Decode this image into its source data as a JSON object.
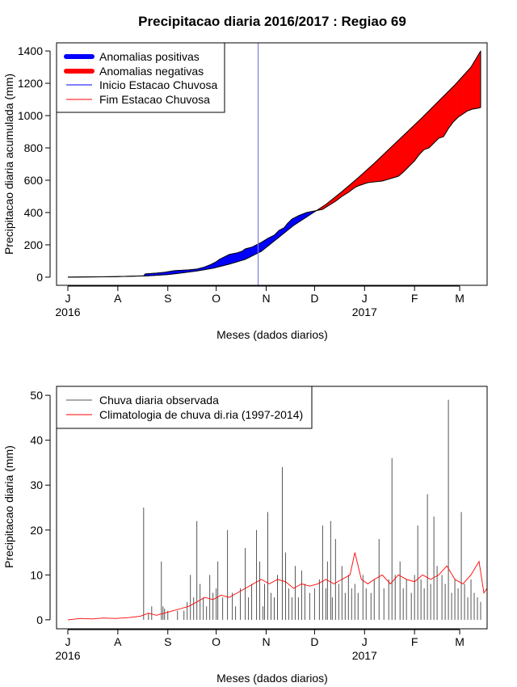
{
  "chart_data": [
    {
      "type": "area",
      "title": "Precipitacao diaria 2016/2017 : Regiao 69",
      "ylabel": "Precipitacao diaria acumulada (mm)",
      "xlabel": "Meses (dados diarios)",
      "x_unit": "days since 2016-07-01",
      "xlim": [
        -7,
        260
      ],
      "ylim": [
        0,
        1400
      ],
      "y_ticks": [
        0,
        200,
        400,
        600,
        800,
        1000,
        1200,
        1400
      ],
      "month_ticks": [
        {
          "day": 0,
          "label": "J"
        },
        {
          "day": 31,
          "label": "A"
        },
        {
          "day": 62,
          "label": "S"
        },
        {
          "day": 92,
          "label": "O"
        },
        {
          "day": 123,
          "label": "N"
        },
        {
          "day": 153,
          "label": "D"
        },
        {
          "day": 184,
          "label": "J"
        },
        {
          "day": 215,
          "label": "F"
        },
        {
          "day": 243,
          "label": "M"
        }
      ],
      "year_labels": [
        {
          "day": 0,
          "label": "2016"
        },
        {
          "day": 184,
          "label": "2017"
        }
      ],
      "legend": {
        "position": "top-left",
        "entries": [
          {
            "label": "Anomalias positivas",
            "color": "#0000ff",
            "style": "thick"
          },
          {
            "label": "Anomalias negativas",
            "color": "#ff0000",
            "style": "thick"
          },
          {
            "label": "Inicio Estacao Chuvosa",
            "color": "#0000ff",
            "style": "thin"
          },
          {
            "label": "Fim Estacao Chuvosa",
            "color": "#ff0000",
            "style": "thin"
          }
        ]
      },
      "rainy_season_start_day": 118,
      "observed_cumulative": [
        [
          0,
          0
        ],
        [
          20,
          2
        ],
        [
          30,
          3
        ],
        [
          47,
          8
        ],
        [
          48,
          20
        ],
        [
          55,
          25
        ],
        [
          60,
          30
        ],
        [
          66,
          40
        ],
        [
          75,
          45
        ],
        [
          80,
          50
        ],
        [
          84,
          60
        ],
        [
          88,
          75
        ],
        [
          92,
          95
        ],
        [
          94,
          110
        ],
        [
          97,
          125
        ],
        [
          100,
          140
        ],
        [
          105,
          150
        ],
        [
          108,
          160
        ],
        [
          110,
          175
        ],
        [
          114,
          185
        ],
        [
          117,
          200
        ],
        [
          120,
          215
        ],
        [
          124,
          240
        ],
        [
          128,
          260
        ],
        [
          131,
          290
        ],
        [
          134,
          305
        ],
        [
          136,
          330
        ],
        [
          139,
          360
        ],
        [
          143,
          380
        ],
        [
          148,
          400
        ],
        [
          153,
          410
        ],
        [
          158,
          420
        ],
        [
          162,
          445
        ],
        [
          166,
          470
        ],
        [
          170,
          500
        ],
        [
          174,
          525
        ],
        [
          178,
          555
        ],
        [
          180,
          565
        ],
        [
          183,
          575
        ],
        [
          186,
          585
        ],
        [
          190,
          590
        ],
        [
          195,
          595
        ],
        [
          200,
          610
        ],
        [
          205,
          625
        ],
        [
          208,
          650
        ],
        [
          212,
          690
        ],
        [
          215,
          720
        ],
        [
          218,
          760
        ],
        [
          221,
          790
        ],
        [
          224,
          800
        ],
        [
          227,
          830
        ],
        [
          230,
          860
        ],
        [
          233,
          870
        ],
        [
          236,
          920
        ],
        [
          239,
          960
        ],
        [
          242,
          990
        ],
        [
          245,
          1010
        ],
        [
          248,
          1030
        ],
        [
          251,
          1040
        ],
        [
          254,
          1045
        ],
        [
          256,
          1050
        ]
      ],
      "climatology_cumulative": [
        [
          0,
          0
        ],
        [
          30,
          3
        ],
        [
          50,
          8
        ],
        [
          62,
          16
        ],
        [
          70,
          25
        ],
        [
          80,
          38
        ],
        [
          90,
          55
        ],
        [
          100,
          80
        ],
        [
          110,
          110
        ],
        [
          120,
          160
        ],
        [
          130,
          240
        ],
        [
          140,
          320
        ],
        [
          150,
          385
        ],
        [
          160,
          450
        ],
        [
          170,
          530
        ],
        [
          180,
          615
        ],
        [
          190,
          705
        ],
        [
          200,
          800
        ],
        [
          210,
          895
        ],
        [
          220,
          990
        ],
        [
          230,
          1090
        ],
        [
          240,
          1190
        ],
        [
          250,
          1300
        ],
        [
          256,
          1400
        ]
      ]
    },
    {
      "type": "bar",
      "ylabel": "Precipitacao diaria (mm)",
      "xlabel": "Meses (dados diarios)",
      "x_unit": "days since 2016-07-01",
      "xlim": [
        -7,
        260
      ],
      "ylim": [
        0,
        50
      ],
      "y_ticks": [
        0,
        10,
        20,
        30,
        40,
        50
      ],
      "legend": {
        "position": "top-left",
        "entries": [
          {
            "label": "Chuva diaria observada",
            "color": "#555555"
          },
          {
            "label": "Climatologia de chuva di.ria (1997-2014)",
            "color": "#ff0000"
          }
        ]
      },
      "observed_daily": [
        [
          47,
          25
        ],
        [
          50,
          1.5
        ],
        [
          52,
          3
        ],
        [
          58,
          13
        ],
        [
          59,
          3
        ],
        [
          60,
          2.5
        ],
        [
          62,
          2
        ],
        [
          68,
          2
        ],
        [
          72,
          2
        ],
        [
          74,
          4
        ],
        [
          76,
          10
        ],
        [
          78,
          5
        ],
        [
          80,
          22
        ],
        [
          82,
          8
        ],
        [
          84,
          5
        ],
        [
          86,
          3
        ],
        [
          88,
          10
        ],
        [
          90,
          6
        ],
        [
          92,
          7
        ],
        [
          93,
          13
        ],
        [
          96,
          5
        ],
        [
          99,
          20
        ],
        [
          102,
          6
        ],
        [
          104,
          3
        ],
        [
          107,
          7
        ],
        [
          110,
          16
        ],
        [
          112,
          5
        ],
        [
          114,
          8
        ],
        [
          117,
          20
        ],
        [
          119,
          13
        ],
        [
          121,
          3
        ],
        [
          122,
          8
        ],
        [
          124,
          24
        ],
        [
          126,
          6
        ],
        [
          128,
          5
        ],
        [
          130,
          10
        ],
        [
          133,
          34
        ],
        [
          135,
          15
        ],
        [
          137,
          7
        ],
        [
          139,
          5
        ],
        [
          141,
          12
        ],
        [
          143,
          5
        ],
        [
          145,
          11
        ],
        [
          147,
          8
        ],
        [
          150,
          6
        ],
        [
          153,
          7
        ],
        [
          156,
          9
        ],
        [
          158,
          21
        ],
        [
          160,
          7
        ],
        [
          161,
          13
        ],
        [
          163,
          22
        ],
        [
          164,
          5
        ],
        [
          166,
          18
        ],
        [
          168,
          8
        ],
        [
          170,
          12
        ],
        [
          172,
          6
        ],
        [
          174,
          10
        ],
        [
          176,
          7
        ],
        [
          178,
          8
        ],
        [
          180,
          6
        ],
        [
          183,
          10
        ],
        [
          185,
          7
        ],
        [
          188,
          6
        ],
        [
          190,
          9
        ],
        [
          193,
          18
        ],
        [
          196,
          7
        ],
        [
          199,
          9
        ],
        [
          201,
          36
        ],
        [
          203,
          10
        ],
        [
          206,
          13
        ],
        [
          208,
          7
        ],
        [
          210,
          9
        ],
        [
          213,
          6
        ],
        [
          215,
          10
        ],
        [
          217,
          21
        ],
        [
          219,
          9
        ],
        [
          221,
          7
        ],
        [
          223,
          28
        ],
        [
          225,
          8
        ],
        [
          227,
          23
        ],
        [
          229,
          12
        ],
        [
          232,
          10
        ],
        [
          234,
          8
        ],
        [
          236,
          49
        ],
        [
          238,
          6
        ],
        [
          240,
          9
        ],
        [
          242,
          7
        ],
        [
          244,
          24
        ],
        [
          246,
          8
        ],
        [
          248,
          5
        ],
        [
          250,
          9
        ],
        [
          252,
          6
        ],
        [
          254,
          5
        ],
        [
          256,
          4
        ]
      ],
      "climatology_daily": [
        [
          0,
          0
        ],
        [
          8,
          0.3
        ],
        [
          15,
          0.2
        ],
        [
          22,
          0.4
        ],
        [
          30,
          0.3
        ],
        [
          38,
          0.5
        ],
        [
          45,
          0.8
        ],
        [
          50,
          1.5
        ],
        [
          55,
          1.0
        ],
        [
          60,
          1.5
        ],
        [
          65,
          2
        ],
        [
          70,
          2.5
        ],
        [
          75,
          3
        ],
        [
          80,
          4
        ],
        [
          85,
          5
        ],
        [
          90,
          4.5
        ],
        [
          95,
          5.5
        ],
        [
          100,
          5
        ],
        [
          105,
          6
        ],
        [
          110,
          7
        ],
        [
          115,
          8
        ],
        [
          120,
          9
        ],
        [
          125,
          8
        ],
        [
          130,
          9
        ],
        [
          135,
          8.5
        ],
        [
          140,
          7
        ],
        [
          145,
          8
        ],
        [
          150,
          7.5
        ],
        [
          155,
          8
        ],
        [
          160,
          9
        ],
        [
          165,
          8
        ],
        [
          170,
          9
        ],
        [
          175,
          10
        ],
        [
          178,
          15
        ],
        [
          182,
          9
        ],
        [
          186,
          8
        ],
        [
          190,
          9
        ],
        [
          195,
          10
        ],
        [
          200,
          8
        ],
        [
          205,
          10
        ],
        [
          210,
          9
        ],
        [
          215,
          8.5
        ],
        [
          220,
          10
        ],
        [
          225,
          9
        ],
        [
          230,
          10
        ],
        [
          235,
          12
        ],
        [
          240,
          9
        ],
        [
          245,
          8
        ],
        [
          250,
          10
        ],
        [
          255,
          13
        ],
        [
          258,
          6
        ],
        [
          260,
          7
        ]
      ]
    }
  ]
}
